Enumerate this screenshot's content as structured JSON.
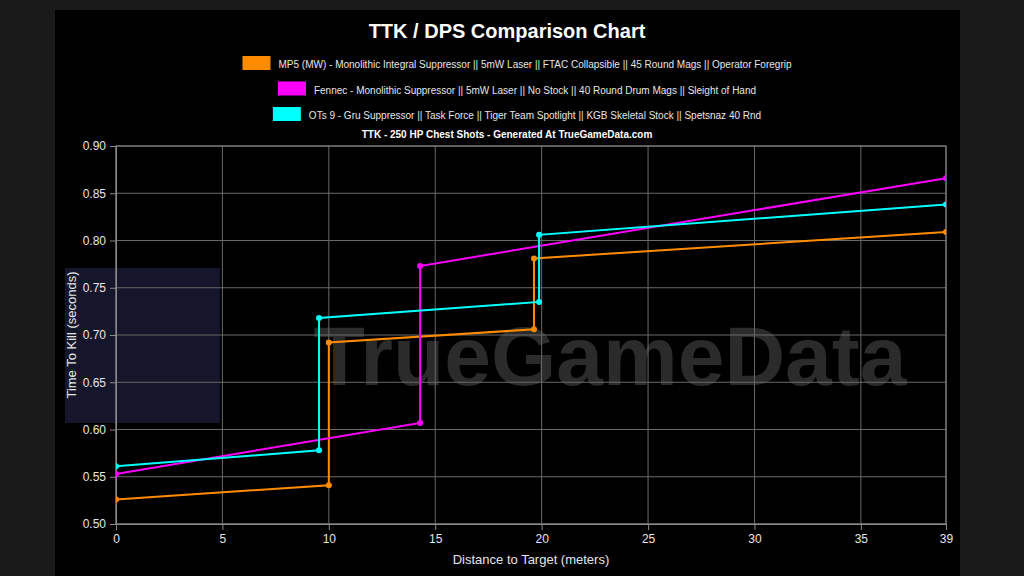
{
  "chart_data": {
    "type": "line",
    "title": "TTK / DPS Comparison Chart",
    "subtitle": "TTK - 250 HP Chest Shots - Generated At TrueGameData.com",
    "annotations": [
      "TrueGameData"
    ],
    "x_label": "Distance to Target (meters)",
    "y_label": "Time To Kill (seconds)",
    "xlim": [
      0,
      39
    ],
    "xticks": [
      0,
      5,
      10,
      15,
      20,
      25,
      30,
      35,
      39
    ],
    "ylim": [
      0.5,
      0.9
    ],
    "yticks": [
      {
        "value": 0.5,
        "label": "0.50"
      },
      0.55,
      {
        "value": 0.6,
        "label": "0.60"
      },
      0.65,
      {
        "value": 0.7,
        "label": "0.70"
      },
      0.75,
      {
        "value": 0.8,
        "label": "0.80"
      },
      0.85,
      {
        "value": 0.9,
        "label": "0.90"
      }
    ],
    "grid": true,
    "legend": "top",
    "marker": "circle",
    "series": [
      {
        "name": "MP5 (MW) - Monolithic Integral Suppressor || 5mW Laser || FTAC Collapsible || 45 Round Mags || Operator Foregrip",
        "color": "#ff8c00",
        "x": [
          0,
          10,
          10,
          19.64,
          19.64,
          39
        ],
        "values": [
          0.526,
          0.541,
          0.692,
          0.706,
          0.781,
          0.809
        ]
      },
      {
        "name": "Fennec - Monolithic Suppressor || 5mW Laser || No Stock || 40 Round Drum Mags || Sleight of Hand",
        "color": "#ff00ff",
        "x": [
          0,
          14.29,
          14.29,
          39
        ],
        "values": [
          0.553,
          0.607,
          0.773,
          0.866
        ]
      },
      {
        "name": "OTs 9 - Gru Suppressor || Task Force || Tiger Team Spotlight || KGB Skeletal Stock || Spetsnaz 40 Rnd",
        "color": "#00ffff",
        "x": [
          0,
          9.54,
          9.54,
          19.88,
          19.88,
          39
        ],
        "values": [
          0.561,
          0.578,
          0.718,
          0.735,
          0.806,
          0.838
        ]
      }
    ]
  }
}
